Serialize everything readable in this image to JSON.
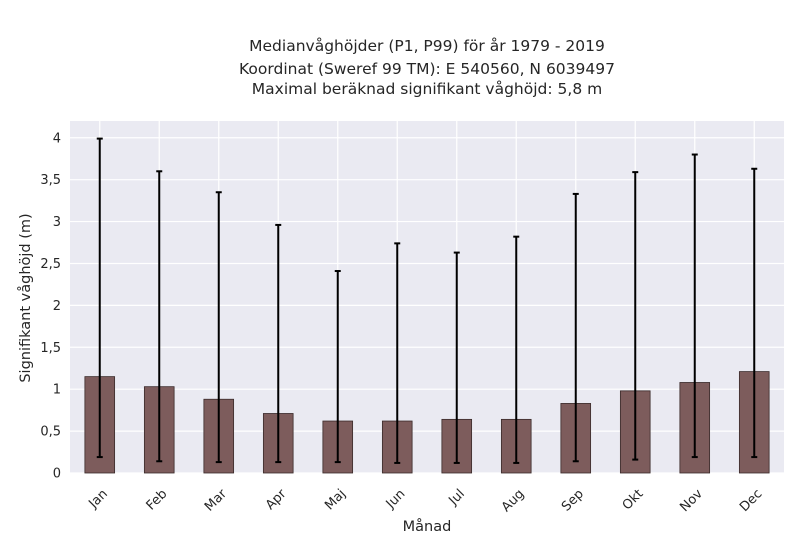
{
  "chart_data": {
    "type": "bar",
    "title_lines": [
      "Medianvåghöjder (P1, P99) för år 1979 - 2019",
      "Koordinat (Sweref 99 TM): E 540560, N 6039497",
      "Maximal beräknad signifikant våghöjd: 5,8 m"
    ],
    "xlabel": "Månad",
    "ylabel": "Signifikant våghöjd (m)",
    "categories": [
      "Jan",
      "Feb",
      "Mar",
      "Apr",
      "Maj",
      "Jun",
      "Jul",
      "Aug",
      "Sep",
      "Okt",
      "Nov",
      "Dec"
    ],
    "values": [
      1.15,
      1.03,
      0.88,
      0.71,
      0.62,
      0.62,
      0.64,
      0.64,
      0.83,
      0.98,
      1.08,
      1.21
    ],
    "error_low": [
      0.19,
      0.14,
      0.13,
      0.13,
      0.13,
      0.12,
      0.12,
      0.12,
      0.14,
      0.16,
      0.19,
      0.19
    ],
    "error_high": [
      3.99,
      3.6,
      3.35,
      2.96,
      2.41,
      2.74,
      2.63,
      2.82,
      3.33,
      3.59,
      3.8,
      3.63
    ],
    "ylim": [
      0,
      4.2
    ],
    "yticks": [
      0,
      0.5,
      1,
      1.5,
      2,
      2.5,
      3,
      3.5,
      4
    ],
    "ytick_labels": [
      "0",
      "0,5",
      "1",
      "1,5",
      "2",
      "2,5",
      "3",
      "3,5",
      "4"
    ],
    "grid": true,
    "colors": {
      "bar": "#7d5c5c",
      "bar_edge": "#3a2a2a",
      "error": "#000000",
      "plot_background": "#eaeaf2",
      "grid": "#ffffff",
      "text": "#262626"
    }
  }
}
